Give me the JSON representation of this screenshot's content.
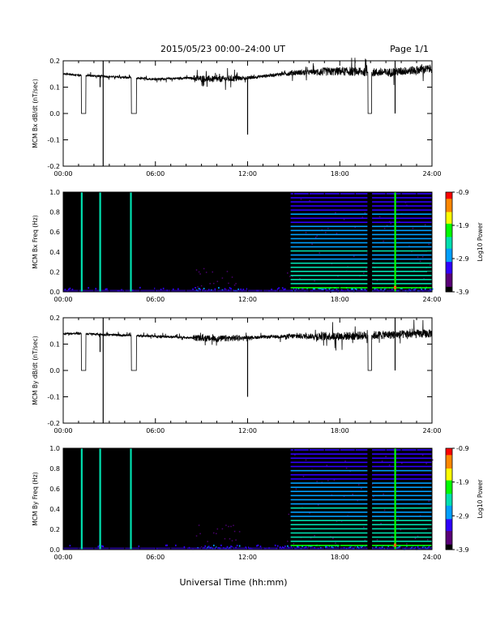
{
  "header": {
    "title": "2015/05/23  00:00–24:00 UT",
    "page": "Page 1/1"
  },
  "colors": {
    "trace": "#000000",
    "background": "#ffffff",
    "spectrogram_bg": "#000000",
    "colorscale": [
      "#000000",
      "#5a0078",
      "#3000ff",
      "#00a0ff",
      "#00e0b0",
      "#00ff00",
      "#ffff00",
      "#ff8800",
      "#ff0000"
    ]
  },
  "chart_data": [
    {
      "type": "line",
      "ylabel": "MCM Bx dB/dt (nT/sec)",
      "xlim": [
        0,
        24
      ],
      "ylim": [
        -0.2,
        0.2
      ],
      "xticks": [
        "00:00",
        "06:00",
        "12:00",
        "18:00",
        "24:00"
      ],
      "yticks": [
        "0.2",
        "0.1",
        "0.0",
        "-0.1",
        "-0.2"
      ],
      "baseline": [
        [
          0,
          0.15
        ],
        [
          1.2,
          0.145
        ],
        [
          3,
          0.14
        ],
        [
          6,
          0.13
        ],
        [
          8,
          0.135
        ],
        [
          10,
          0.13
        ],
        [
          12,
          0.135
        ],
        [
          15,
          0.155
        ],
        [
          18,
          0.16
        ],
        [
          21,
          0.155
        ],
        [
          24,
          0.17
        ]
      ],
      "gaps": [
        [
          1.15,
          1.5
        ],
        [
          4.4,
          4.8
        ],
        [
          19.8,
          20.1
        ]
      ],
      "spikes": [
        [
          2.6,
          -0.2
        ],
        [
          2.4,
          0.1
        ],
        [
          12.0,
          -0.08
        ],
        [
          21.6,
          0.0
        ],
        [
          21.6,
          0.2
        ],
        [
          2.6,
          0.2
        ]
      ]
    },
    {
      "type": "heatmap",
      "ylabel": "MCM Bx Freq (Hz)",
      "xlim": [
        0,
        24
      ],
      "ylim": [
        0,
        1
      ],
      "xticks": [
        "00:00",
        "06:00",
        "12:00",
        "18:00",
        "24:00"
      ],
      "yticks": [
        "1.0",
        "0.8",
        "0.6",
        "0.4",
        "0.2",
        "0.0"
      ],
      "colorbar": {
        "label": "Log10 Power",
        "ticks": [
          "-0.9",
          "-1.9",
          "-2.9",
          "-3.9"
        ],
        "range": [
          -3.9,
          -0.9
        ]
      },
      "vertical_lines": [
        [
          1.2,
          0.55
        ],
        [
          2.4,
          0.45
        ],
        [
          4.4,
          0.5
        ],
        [
          21.6,
          0.6
        ]
      ],
      "harmonic_onset_hr": 14.8,
      "harmonic_spacing_hz": 0.041,
      "gaps": [
        [
          19.8,
          20.1
        ]
      ]
    },
    {
      "type": "line",
      "ylabel": "MCM By dB/dt (nT/sec)",
      "xlim": [
        0,
        24
      ],
      "ylim": [
        -0.2,
        0.2
      ],
      "xticks": [
        "00:00",
        "06:00",
        "12:00",
        "18:00",
        "24:00"
      ],
      "yticks": [
        "0.2",
        "0.1",
        "0.0",
        "-0.1",
        "-0.2"
      ],
      "baseline": [
        [
          0,
          0.14
        ],
        [
          1.2,
          0.14
        ],
        [
          3,
          0.135
        ],
        [
          6,
          0.13
        ],
        [
          8,
          0.125
        ],
        [
          10,
          0.12
        ],
        [
          12,
          0.125
        ],
        [
          15,
          0.13
        ],
        [
          18,
          0.13
        ],
        [
          21,
          0.135
        ],
        [
          24,
          0.14
        ]
      ],
      "gaps": [
        [
          1.15,
          1.5
        ],
        [
          4.4,
          4.8
        ],
        [
          19.8,
          20.1
        ]
      ],
      "spikes": [
        [
          2.6,
          -0.2
        ],
        [
          2.4,
          0.07
        ],
        [
          12.0,
          -0.1
        ],
        [
          21.6,
          0.0
        ],
        [
          21.6,
          0.2
        ],
        [
          2.6,
          0.2
        ]
      ]
    },
    {
      "type": "heatmap",
      "ylabel": "MCM By Freq (Hz)",
      "xlim": [
        0,
        24
      ],
      "ylim": [
        0,
        1
      ],
      "xticks": [
        "00:00",
        "06:00",
        "12:00",
        "18:00",
        "24:00"
      ],
      "yticks": [
        "1.0",
        "0.8",
        "0.6",
        "0.4",
        "0.2",
        "0.0"
      ],
      "colorbar": {
        "label": "Log10 Power",
        "ticks": [
          "-0.9",
          "-1.9",
          "-2.9",
          "-3.9"
        ],
        "range": [
          -3.9,
          -0.9
        ]
      },
      "vertical_lines": [
        [
          1.2,
          0.55
        ],
        [
          2.4,
          0.45
        ],
        [
          4.4,
          0.5
        ],
        [
          21.6,
          0.6
        ]
      ],
      "harmonic_onset_hr": 14.8,
      "harmonic_spacing_hz": 0.041,
      "gaps": [
        [
          19.8,
          20.1
        ]
      ]
    }
  ],
  "xaxis_title": "Universal Time (hh:mm)"
}
